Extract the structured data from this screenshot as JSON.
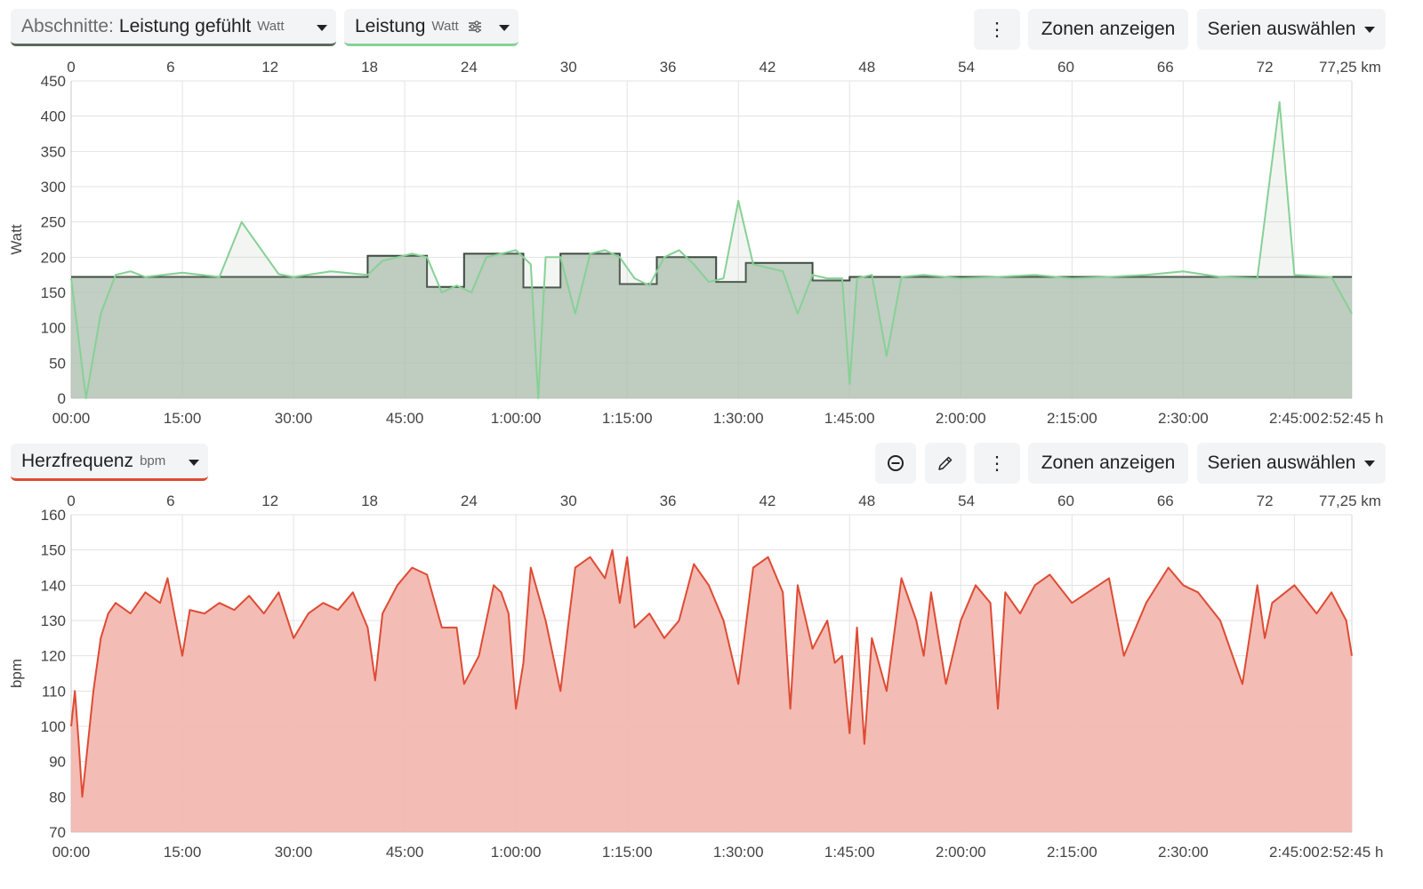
{
  "top_panel": {
    "sections_dropdown": {
      "prefix": "Abschnitte:",
      "label": "Leistung gefühlt",
      "unit": "Watt"
    },
    "series_pill": {
      "label": "Leistung",
      "unit": "Watt"
    },
    "buttons": {
      "more": "⋮",
      "zones": "Zonen anzeigen",
      "series": "Serien auswählen"
    }
  },
  "bottom_panel": {
    "series_pill": {
      "label": "Herzfrequenz",
      "unit": "bpm"
    },
    "buttons": {
      "more": "⋮",
      "zones": "Zonen anzeigen",
      "series": "Serien auswählen"
    }
  },
  "colors": {
    "power": "#86d195",
    "power_fill": "#aebfb0",
    "laps": "#3d4a3f",
    "hr": "#de4b34",
    "hr_fill": "#f2b8b0"
  },
  "icons": {
    "remove": "minus-circle-icon",
    "edit": "pencil-icon",
    "filter": "sliders-icon"
  },
  "chart_data": [
    {
      "type": "line",
      "ylabel": "Watt",
      "ylim": [
        0,
        450
      ],
      "y_ticks": [
        "0",
        "50",
        "100",
        "150",
        "200",
        "250",
        "300",
        "350",
        "400",
        "450"
      ],
      "x_time_ticks": [
        "00:00",
        "15:00",
        "30:00",
        "45:00",
        "1:00:00",
        "1:15:00",
        "1:30:00",
        "1:45:00",
        "2:00:00",
        "2:15:00",
        "2:30:00",
        "2:45:00",
        "2:52:45 h"
      ],
      "x_km_ticks": [
        "0",
        "6",
        "12",
        "18",
        "24",
        "30",
        "36",
        "42",
        "48",
        "54",
        "60",
        "66",
        "72",
        "77,25 km"
      ],
      "series": [
        {
          "name": "Leistung",
          "style": "area",
          "x_min": [
            0,
            2,
            4,
            6,
            8,
            10,
            15,
            20,
            23,
            28,
            30,
            35,
            40,
            42,
            44,
            46,
            48,
            50,
            52,
            54,
            56,
            58,
            60,
            62,
            63,
            64,
            66,
            68,
            70,
            72,
            74,
            76,
            78,
            80,
            82,
            84,
            86,
            88,
            90,
            92,
            94,
            96,
            98,
            100,
            102,
            104,
            105,
            106,
            108,
            110,
            112,
            115,
            120,
            125,
            130,
            135,
            140,
            145,
            150,
            155,
            160,
            163,
            165,
            170,
            172.75
          ],
          "values": [
            170,
            0,
            120,
            175,
            180,
            172,
            178,
            172,
            250,
            176,
            172,
            180,
            175,
            195,
            200,
            205,
            200,
            150,
            160,
            150,
            200,
            205,
            210,
            190,
            0,
            200,
            200,
            120,
            205,
            210,
            200,
            170,
            160,
            200,
            210,
            190,
            165,
            170,
            280,
            190,
            185,
            180,
            120,
            175,
            170,
            170,
            20,
            170,
            175,
            60,
            172,
            175,
            170,
            172,
            175,
            170,
            172,
            175,
            180,
            172,
            170,
            420,
            175,
            172,
            120
          ]
        },
        {
          "name": "Leistung gefühlt",
          "style": "step",
          "x_min": [
            0,
            40,
            48,
            53,
            61,
            66,
            74,
            79,
            87,
            91,
            100,
            105,
            172.75
          ],
          "values": [
            172,
            202,
            158,
            205,
            157,
            205,
            162,
            200,
            165,
            192,
            167,
            172,
            172
          ]
        }
      ]
    },
    {
      "type": "line",
      "ylabel": "bpm",
      "ylim": [
        70,
        160
      ],
      "y_ticks": [
        "70",
        "80",
        "90",
        "100",
        "110",
        "120",
        "130",
        "140",
        "150",
        "160"
      ],
      "x_time_ticks": [
        "00:00",
        "15:00",
        "30:00",
        "45:00",
        "1:00:00",
        "1:15:00",
        "1:30:00",
        "1:45:00",
        "2:00:00",
        "2:15:00",
        "2:30:00",
        "2:45:00",
        "2:52:45 h"
      ],
      "x_km_ticks": [
        "0",
        "6",
        "12",
        "18",
        "24",
        "30",
        "36",
        "42",
        "48",
        "54",
        "60",
        "66",
        "72",
        "77,25 km"
      ],
      "series": [
        {
          "name": "Herzfrequenz",
          "style": "area",
          "x_min": [
            0,
            0.5,
            1,
            1.5,
            2,
            3,
            4,
            5,
            6,
            8,
            10,
            12,
            13,
            15,
            16,
            18,
            20,
            22,
            24,
            26,
            28,
            30,
            32,
            34,
            36,
            38,
            40,
            41,
            42,
            44,
            46,
            48,
            50,
            52,
            53,
            55,
            57,
            58,
            59,
            60,
            61,
            62,
            64,
            66,
            67,
            68,
            70,
            72,
            73,
            74,
            75,
            76,
            78,
            80,
            82,
            84,
            86,
            88,
            90,
            92,
            94,
            96,
            97,
            98,
            100,
            102,
            103,
            104,
            105,
            106,
            107,
            108,
            110,
            112,
            114,
            115,
            116,
            118,
            120,
            122,
            124,
            125,
            126,
            128,
            130,
            132,
            135,
            140,
            142,
            145,
            148,
            150,
            152,
            155,
            158,
            160,
            161,
            162,
            165,
            168,
            170,
            172,
            172.75
          ],
          "values": [
            100,
            110,
            96,
            80,
            90,
            110,
            125,
            132,
            135,
            132,
            138,
            135,
            142,
            120,
            133,
            132,
            135,
            133,
            137,
            132,
            138,
            125,
            132,
            135,
            133,
            138,
            128,
            113,
            132,
            140,
            145,
            143,
            128,
            128,
            112,
            120,
            140,
            138,
            132,
            105,
            118,
            145,
            130,
            110,
            128,
            145,
            148,
            142,
            150,
            135,
            148,
            128,
            132,
            125,
            130,
            146,
            140,
            130,
            112,
            145,
            148,
            138,
            105,
            140,
            122,
            130,
            118,
            120,
            98,
            128,
            95,
            125,
            110,
            142,
            130,
            120,
            138,
            112,
            130,
            140,
            135,
            105,
            138,
            132,
            140,
            143,
            135,
            142,
            120,
            135,
            145,
            140,
            138,
            130,
            112,
            140,
            125,
            135,
            140,
            132,
            138,
            130,
            120
          ]
        }
      ]
    }
  ]
}
